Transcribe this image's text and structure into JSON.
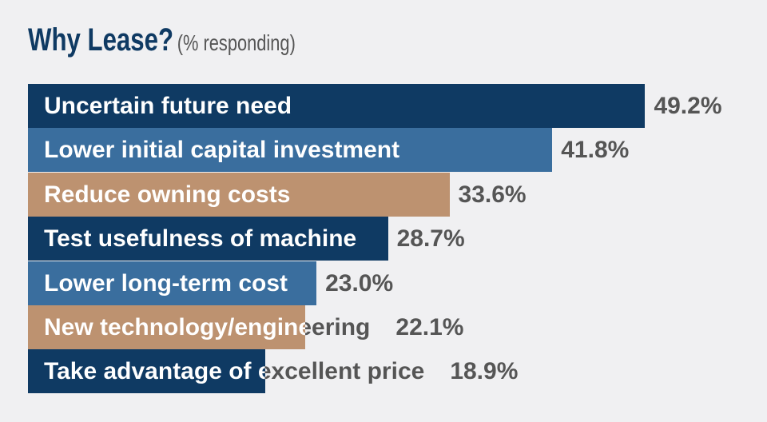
{
  "chart_data": {
    "type": "bar",
    "orientation": "horizontal",
    "title": "Why Lease?",
    "subtitle": "(% responding)",
    "categories": [
      "Uncertain future need",
      "Lower initial capital investment",
      "Reduce owning costs",
      "Test usefulness of machine",
      "Lower long-term cost",
      "New technology/engineering",
      "Take advantage of excellent price"
    ],
    "values": [
      49.2,
      41.8,
      33.6,
      28.7,
      23.0,
      22.1,
      18.9
    ],
    "value_labels": [
      "49.2%",
      "41.8%",
      "33.6%",
      "28.7%",
      "23.0%",
      "22.1%",
      "18.9%"
    ],
    "colors": [
      "#0f3a63",
      "#3a6e9e",
      "#bd9270",
      "#0f3a63",
      "#3a6e9e",
      "#bd9270",
      "#0f3a63"
    ],
    "xlim": [
      0,
      50
    ],
    "grid": false,
    "legend": "none"
  }
}
